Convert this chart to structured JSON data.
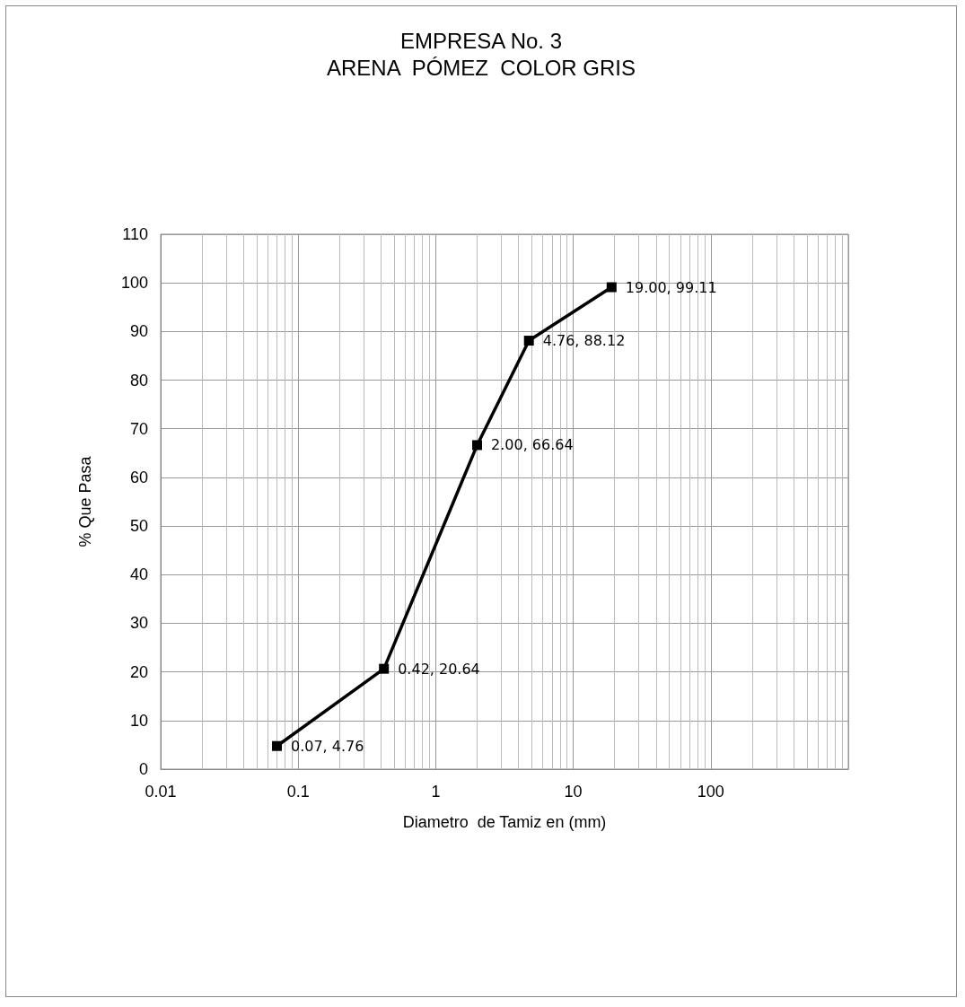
{
  "chart_data": {
    "type": "line",
    "title": "EMPRESA No. 3\nARENA  PÓMEZ  COLOR GRIS",
    "xlabel": "Diametro  de Tamiz en (mm)",
    "ylabel": "% Que Pasa",
    "x": [
      0.07,
      0.42,
      2.0,
      4.76,
      19.0
    ],
    "series": [
      {
        "color": "#000000",
        "values": [
          4.76,
          20.64,
          66.64,
          88.12,
          99.11
        ],
        "value_labels": [
          "0.07, 4.76",
          "0.42, 20.64",
          "2.00, 66.64",
          "4.76, 88.12",
          "19.00, 99.11"
        ]
      }
    ],
    "log": "x",
    "xlim": [
      0.01,
      1000
    ],
    "xticks": [
      0.01,
      0.1,
      1,
      10,
      100
    ],
    "ylim": [
      0,
      110
    ],
    "yticks": [
      0,
      10,
      20,
      30,
      40,
      50,
      60,
      70,
      80,
      90,
      100,
      110
    ],
    "grid": true,
    "marker": "square",
    "line_style": "solid"
  }
}
